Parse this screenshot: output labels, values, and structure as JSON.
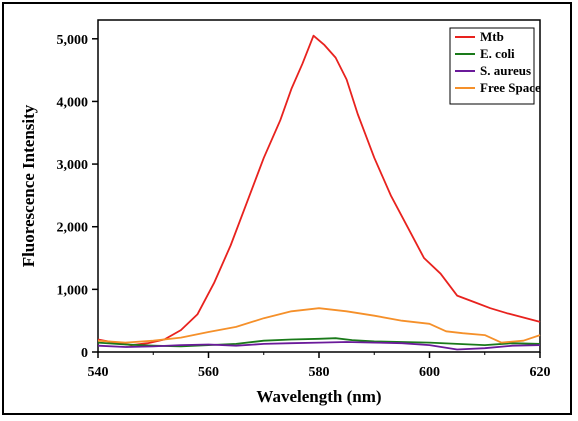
{
  "chart_data": {
    "type": "line",
    "xlabel": "Wavelength (nm)",
    "ylabel": "Fluorescence Intensity",
    "xlim": [
      540,
      620
    ],
    "ylim": [
      0,
      5300
    ],
    "xticks": [
      540,
      560,
      580,
      600,
      620
    ],
    "xtick_labels": [
      "540",
      "560",
      "580",
      "600",
      "620"
    ],
    "yticks": [
      0,
      1000,
      2000,
      3000,
      4000,
      5000
    ],
    "ytick_labels": [
      "0",
      "1,000",
      "2,000",
      "3,000",
      "4,000",
      "5,000"
    ],
    "grid": false,
    "legend_position": "top-right",
    "series": [
      {
        "name": "Mtb",
        "color": "#e8221e",
        "points": [
          [
            540,
            200
          ],
          [
            543,
            150
          ],
          [
            546,
            110
          ],
          [
            549,
            140
          ],
          [
            552,
            200
          ],
          [
            555,
            350
          ],
          [
            558,
            600
          ],
          [
            561,
            1100
          ],
          [
            564,
            1700
          ],
          [
            567,
            2400
          ],
          [
            570,
            3100
          ],
          [
            573,
            3700
          ],
          [
            575,
            4200
          ],
          [
            577,
            4600
          ],
          [
            579,
            5050
          ],
          [
            581,
            4900
          ],
          [
            583,
            4700
          ],
          [
            585,
            4350
          ],
          [
            587,
            3800
          ],
          [
            590,
            3100
          ],
          [
            593,
            2500
          ],
          [
            596,
            2000
          ],
          [
            599,
            1500
          ],
          [
            602,
            1250
          ],
          [
            605,
            900
          ],
          [
            608,
            800
          ],
          [
            611,
            700
          ],
          [
            614,
            620
          ],
          [
            617,
            550
          ],
          [
            620,
            480
          ]
        ]
      },
      {
        "name": "E. coli",
        "color": "#1a7a1a",
        "points": [
          [
            540,
            150
          ],
          [
            545,
            120
          ],
          [
            550,
            100
          ],
          [
            555,
            90
          ],
          [
            560,
            110
          ],
          [
            565,
            130
          ],
          [
            570,
            180
          ],
          [
            575,
            200
          ],
          [
            580,
            210
          ],
          [
            583,
            220
          ],
          [
            586,
            190
          ],
          [
            590,
            170
          ],
          [
            595,
            160
          ],
          [
            600,
            150
          ],
          [
            605,
            130
          ],
          [
            610,
            110
          ],
          [
            615,
            140
          ],
          [
            620,
            130
          ]
        ]
      },
      {
        "name": "S. aureus",
        "color": "#6a1a9a",
        "points": [
          [
            540,
            100
          ],
          [
            545,
            80
          ],
          [
            550,
            90
          ],
          [
            555,
            110
          ],
          [
            560,
            120
          ],
          [
            565,
            100
          ],
          [
            570,
            130
          ],
          [
            575,
            140
          ],
          [
            580,
            150
          ],
          [
            585,
            160
          ],
          [
            590,
            150
          ],
          [
            595,
            140
          ],
          [
            600,
            110
          ],
          [
            605,
            40
          ],
          [
            610,
            60
          ],
          [
            615,
            100
          ],
          [
            620,
            110
          ]
        ]
      },
      {
        "name": "Free Space",
        "color": "#f5902a",
        "points": [
          [
            540,
            180
          ],
          [
            545,
            150
          ],
          [
            550,
            180
          ],
          [
            555,
            230
          ],
          [
            560,
            320
          ],
          [
            565,
            400
          ],
          [
            570,
            540
          ],
          [
            575,
            650
          ],
          [
            580,
            700
          ],
          [
            585,
            650
          ],
          [
            590,
            580
          ],
          [
            595,
            500
          ],
          [
            600,
            450
          ],
          [
            603,
            330
          ],
          [
            606,
            300
          ],
          [
            610,
            270
          ],
          [
            613,
            150
          ],
          [
            617,
            180
          ],
          [
            620,
            270
          ]
        ]
      }
    ]
  }
}
